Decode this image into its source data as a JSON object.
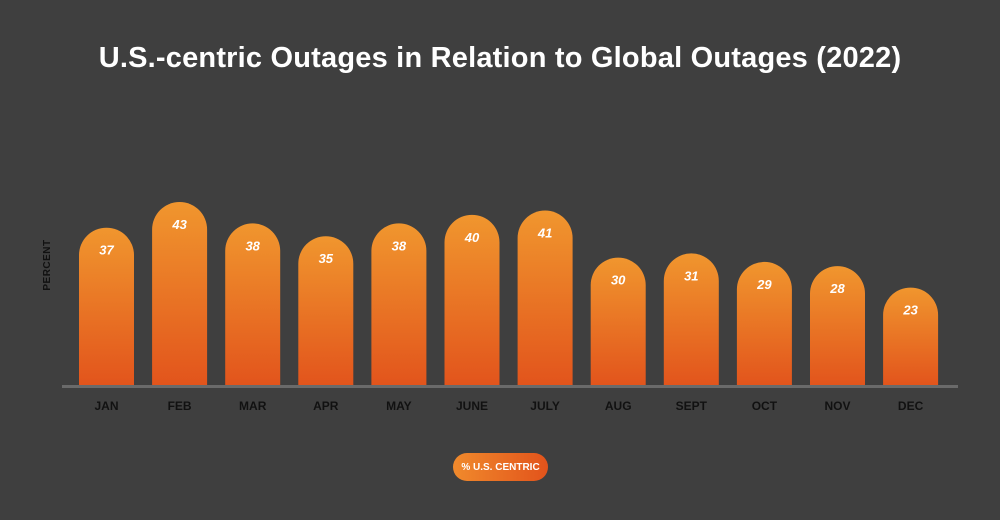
{
  "colors": {
    "background": "#3f3f3f",
    "bar_top": "#f0962e",
    "bar_bottom": "#e2541c",
    "axis": "#6a6a6a"
  },
  "chart_data": {
    "type": "bar",
    "title": "U.S.-centric Outages in Relation to Global Outages (2022)",
    "xlabel": "",
    "ylabel": "PERCENT",
    "categories": [
      "JAN",
      "FEB",
      "MAR",
      "APR",
      "MAY",
      "JUNE",
      "JULY",
      "AUG",
      "SEPT",
      "OCT",
      "NOV",
      "DEC"
    ],
    "series": [
      {
        "name": "% U.S. CENTRIC",
        "values": [
          37,
          43,
          38,
          35,
          38,
          40,
          41,
          30,
          31,
          29,
          28,
          23
        ]
      }
    ],
    "ylim": [
      0,
      43
    ],
    "grid": false,
    "legend": "bottom-center"
  }
}
